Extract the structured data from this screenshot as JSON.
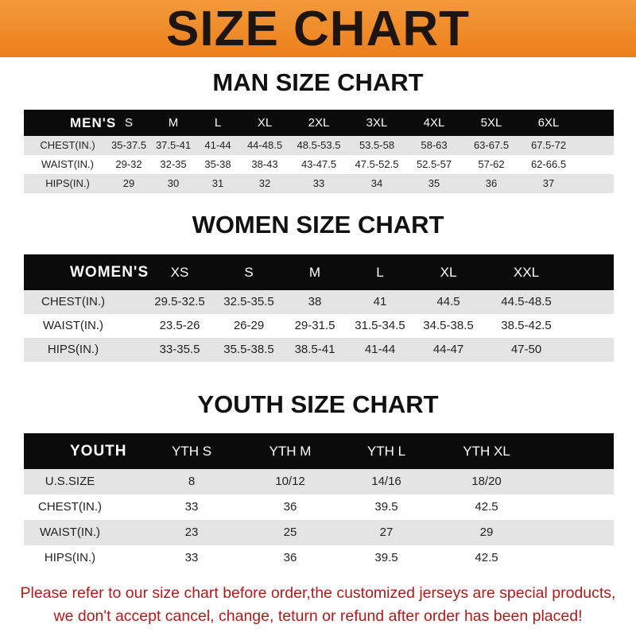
{
  "banner": {
    "title": "SIZE CHART",
    "color": "#ef8a28"
  },
  "men": {
    "title": "MAN SIZE CHART",
    "header": [
      "MEN'S",
      "S",
      "M",
      "L",
      "XL",
      "2XL",
      "3XL",
      "4XL",
      "5XL",
      "6XL"
    ],
    "rows": [
      [
        "CHEST(IN.)",
        "35-37.5",
        "37.5-41",
        "41-44",
        "44-48.5",
        "48.5-53.5",
        "53.5-58",
        "58-63",
        "63-67.5",
        "67.5-72"
      ],
      [
        "WAIST(IN.)",
        "29-32",
        "32-35",
        "35-38",
        "38-43",
        "43-47.5",
        "47.5-52.5",
        "52.5-57",
        "57-62",
        "62-66.5"
      ],
      [
        "HIPS(IN.)",
        "29",
        "30",
        "31",
        "32",
        "33",
        "34",
        "35",
        "36",
        "37"
      ]
    ]
  },
  "women": {
    "title": "WOMEN SIZE CHART",
    "header": [
      "WOMEN'S",
      "XS",
      "S",
      "M",
      "L",
      "XL",
      "XXL"
    ],
    "rows": [
      [
        "CHEST(IN.)",
        "29.5-32.5",
        "32.5-35.5",
        "38",
        "41",
        "44.5",
        "44.5-48.5"
      ],
      [
        "WAIST(IN.)",
        "23.5-26",
        "26-29",
        "29-31.5",
        "31.5-34.5",
        "34.5-38.5",
        "38.5-42.5"
      ],
      [
        "HIPS(IN.)",
        "33-35.5",
        "35.5-38.5",
        "38.5-41",
        "41-44",
        "44-47",
        "47-50"
      ]
    ]
  },
  "youth": {
    "title": "YOUTH SIZE CHART",
    "header": [
      "YOUTH",
      "YTH S",
      "YTH M",
      "YTH L",
      "YTH XL"
    ],
    "rows": [
      [
        "U.S.SIZE",
        "8",
        "10/12",
        "14/16",
        "18/20"
      ],
      [
        "CHEST(IN.)",
        "33",
        "36",
        "39.5",
        "42.5"
      ],
      [
        "WAIST(IN.)",
        "23",
        "25",
        "27",
        "29"
      ],
      [
        "HIPS(IN.)",
        "33",
        "36",
        "39.5",
        "42.5"
      ]
    ]
  },
  "footer": {
    "line1": "Please refer to our size chart before order,the customized jerseys are special products,",
    "line2": "we don't accept cancel, change, teturn or refund after order has been placed!",
    "color": "#b31b1b"
  }
}
